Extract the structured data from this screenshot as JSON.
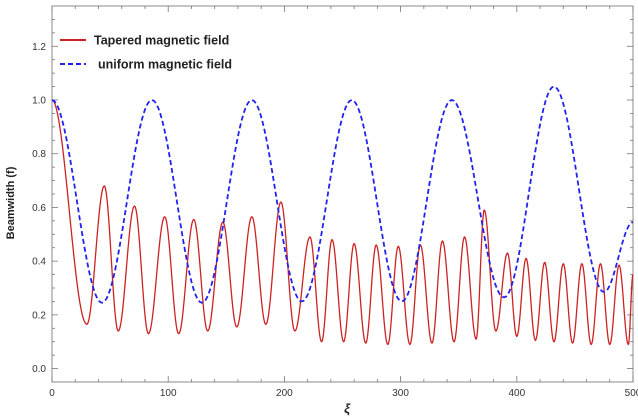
{
  "chart_data": {
    "type": "line",
    "title": "",
    "xlabel": "ξ",
    "ylabel": "Beamwidth (f)",
    "xlim": [
      0,
      500
    ],
    "ylim": [
      -0.05,
      1.35
    ],
    "x_ticks": [
      0,
      100,
      200,
      300,
      400,
      500
    ],
    "y_ticks": [
      0.0,
      0.2,
      0.4,
      0.6,
      0.8,
      1.0,
      1.2
    ],
    "grid": false,
    "legend_position": "top-left",
    "series": [
      {
        "name": "Tapered magnetic field",
        "color": "#cc2222",
        "style": "solid",
        "approx_extrema": [
          [
            0,
            1.0
          ],
          [
            30,
            0.165
          ],
          [
            45,
            0.68
          ],
          [
            57,
            0.14
          ],
          [
            71,
            0.605
          ],
          [
            83,
            0.13
          ],
          [
            97,
            0.565
          ],
          [
            109,
            0.13
          ],
          [
            122,
            0.555
          ],
          [
            134,
            0.14
          ],
          [
            147,
            0.545
          ],
          [
            159,
            0.155
          ],
          [
            172,
            0.565
          ],
          [
            184,
            0.165
          ],
          [
            197,
            0.62
          ],
          [
            209,
            0.14
          ],
          [
            222,
            0.49
          ],
          [
            232,
            0.1
          ],
          [
            241,
            0.48
          ],
          [
            251,
            0.1
          ],
          [
            260,
            0.465
          ],
          [
            270,
            0.095
          ],
          [
            279,
            0.46
          ],
          [
            289,
            0.09
          ],
          [
            298,
            0.455
          ],
          [
            308,
            0.09
          ],
          [
            317,
            0.46
          ],
          [
            327,
            0.095
          ],
          [
            336,
            0.475
          ],
          [
            346,
            0.1
          ],
          [
            355,
            0.49
          ],
          [
            365,
            0.11
          ],
          [
            372,
            0.59
          ],
          [
            382,
            0.14
          ],
          [
            392,
            0.43
          ],
          [
            400,
            0.12
          ],
          [
            408,
            0.41
          ],
          [
            416,
            0.105
          ],
          [
            424,
            0.395
          ],
          [
            432,
            0.1
          ],
          [
            440,
            0.39
          ],
          [
            448,
            0.095
          ],
          [
            456,
            0.39
          ],
          [
            464,
            0.09
          ],
          [
            472,
            0.39
          ],
          [
            480,
            0.09
          ],
          [
            488,
            0.385
          ],
          [
            496,
            0.09
          ],
          [
            500,
            0.35
          ]
        ]
      },
      {
        "name": "uniform magnetic field",
        "color": "#2222ee",
        "style": "dashed",
        "approx_extrema": [
          [
            0,
            1.0
          ],
          [
            43,
            0.245
          ],
          [
            86,
            1.0
          ],
          [
            129,
            0.245
          ],
          [
            172,
            1.0
          ],
          [
            215,
            0.25
          ],
          [
            258,
            1.0
          ],
          [
            301,
            0.25
          ],
          [
            344,
            1.0
          ],
          [
            389,
            0.265
          ],
          [
            432,
            1.05
          ],
          [
            475,
            0.285
          ],
          [
            500,
            0.545
          ]
        ]
      }
    ]
  }
}
